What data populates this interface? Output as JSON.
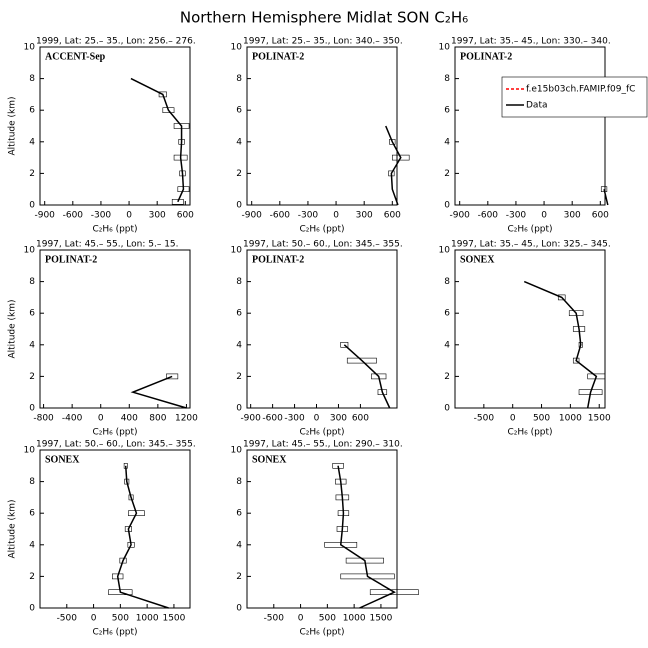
{
  "title": "Northern Hemisphere Midlat SON C₂H₆",
  "chart_data": [
    {
      "type": "line",
      "title": "1999, Lat: 25.– 35., Lon: 256.– 276.",
      "annotation": "ACCENT-Sep",
      "xlabel": "C₂H₆ (ppt)",
      "ylabel": "Altitude (km)",
      "xlim": [
        -950,
        650
      ],
      "xticks": [
        -900,
        -600,
        -300,
        0,
        300,
        600
      ],
      "ylim": [
        0,
        10
      ],
      "yticks": [
        0,
        2,
        4,
        6,
        8,
        10
      ],
      "series": [
        {
          "name": "Data",
          "color": "#000000",
          "x": [
            20,
            360,
            420,
            560,
            560,
            550,
            570,
            580,
            520
          ],
          "y": [
            8,
            7,
            6,
            5,
            4,
            3,
            2,
            1,
            0.2
          ],
          "errors": [
            0,
            40,
            60,
            80,
            30,
            70,
            30,
            60,
            60
          ]
        }
      ]
    },
    {
      "type": "line",
      "title": "1997, Lat: 25.– 35., Lon: 340.– 350.",
      "annotation": "POLINAT-2",
      "xlabel": "C₂H₆ (ppt)",
      "xlim": [
        -950,
        650
      ],
      "xticks": [
        -900,
        -600,
        -300,
        0,
        300,
        600
      ],
      "ylim": [
        0,
        10
      ],
      "yticks": [
        0,
        2,
        4,
        6,
        8,
        10
      ],
      "series": [
        {
          "name": "Data",
          "color": "#000000",
          "x": [
            530,
            600,
            690,
            590,
            600,
            660
          ],
          "y": [
            5,
            4,
            3,
            2,
            1,
            0
          ],
          "errors": [
            0,
            30,
            90,
            30,
            0,
            0
          ]
        }
      ]
    },
    {
      "type": "line",
      "title": "1997, Lat: 35.– 45., Lon: 330.– 340.",
      "annotation": "POLINAT-2",
      "xlabel": "C₂H₆ (ppt)",
      "xlim": [
        -950,
        650
      ],
      "xticks": [
        -900,
        -600,
        -300,
        0,
        300,
        600
      ],
      "ylim": [
        0,
        10
      ],
      "yticks": [
        0,
        2,
        4,
        6,
        8,
        10
      ],
      "legend": [
        {
          "name": "f.e15b03ch.FAMIP.f09_fC",
          "color": "#ff0000",
          "dash": true
        },
        {
          "name": "Data",
          "color": "#000000"
        }
      ],
      "series": [
        {
          "name": "Data",
          "color": "#000000",
          "x": [
            640,
            680
          ],
          "y": [
            1,
            0
          ],
          "errors": [
            30,
            0
          ]
        }
      ]
    },
    {
      "type": "line",
      "title": "1997, Lat: 45.– 55., Lon: 5.– 15.",
      "annotation": "POLINAT-2",
      "xlabel": "C₂H₆ (ppt)",
      "ylabel": "Altitude (km)",
      "xlim": [
        -850,
        1250
      ],
      "xticks": [
        -800,
        -400,
        0,
        400,
        800,
        1200
      ],
      "ylim": [
        0,
        10
      ],
      "yticks": [
        0,
        2,
        4,
        6,
        8,
        10
      ],
      "series": [
        {
          "name": "Data",
          "color": "#000000",
          "x": [
            1000,
            450,
            1200
          ],
          "y": [
            2,
            1,
            0
          ],
          "errors": [
            80,
            0,
            0
          ]
        }
      ]
    },
    {
      "type": "line",
      "title": "1997, Lat: 50.– 60., Lon: 345.– 355.",
      "annotation": "POLINAT-2",
      "xlabel": "C₂H₆ (ppt)",
      "xlim": [
        -950,
        1100
      ],
      "xticks": [
        -900,
        -600,
        -300,
        0,
        300,
        600
      ],
      "ylim": [
        0,
        10
      ],
      "yticks": [
        0,
        2,
        4,
        6,
        8,
        10
      ],
      "series": [
        {
          "name": "Data",
          "color": "#000000",
          "x": [
            380,
            620,
            850,
            900,
            1000
          ],
          "y": [
            4,
            3,
            2,
            1,
            0
          ],
          "errors": [
            50,
            200,
            100,
            60,
            0
          ]
        }
      ]
    },
    {
      "type": "line",
      "title": "1997, Lat: 35.– 45., Lon: 325.– 345.",
      "annotation": "SONEX",
      "xlabel": "C₂H₆ (ppt)",
      "xlim": [
        -1000,
        1600
      ],
      "xticks": [
        -500,
        0,
        500,
        1000,
        1500
      ],
      "ylim": [
        0,
        10
      ],
      "yticks": [
        0,
        2,
        4,
        6,
        8,
        10
      ],
      "series": [
        {
          "name": "Data",
          "color": "#000000",
          "x": [
            200,
            850,
            1100,
            1150,
            1180,
            1100,
            1450,
            1350,
            1300
          ],
          "y": [
            8,
            7,
            6,
            5,
            4,
            3,
            2,
            1,
            0
          ],
          "errors": [
            0,
            60,
            120,
            100,
            30,
            50,
            150,
            200,
            0
          ]
        }
      ]
    },
    {
      "type": "line",
      "title": "1997, Lat: 50.– 60., Lon: 345.– 355.",
      "annotation": "SONEX",
      "xlabel": "C₂H₆ (ppt)",
      "ylabel": "Altitude (km)",
      "xlim": [
        -1000,
        1800
      ],
      "xticks": [
        -500,
        0,
        500,
        1000,
        1500
      ],
      "ylim": [
        0,
        10
      ],
      "yticks": [
        0,
        2,
        4,
        6,
        8,
        10
      ],
      "series": [
        {
          "name": "Data",
          "color": "#000000",
          "x": [
            600,
            620,
            700,
            800,
            650,
            700,
            550,
            450,
            500,
            1400
          ],
          "y": [
            9,
            8,
            7,
            6,
            5,
            4,
            3,
            2,
            1,
            0
          ],
          "errors": [
            30,
            40,
            40,
            150,
            60,
            60,
            60,
            100,
            220,
            0
          ]
        }
      ]
    },
    {
      "type": "line",
      "title": "1997, Lat: 45.– 55., Lon: 290.– 310.",
      "annotation": "SONEX",
      "xlabel": "C₂H₆ (ppt)",
      "xlim": [
        -1000,
        1800
      ],
      "xticks": [
        -500,
        0,
        500,
        1000,
        1500
      ],
      "ylim": [
        0,
        10
      ],
      "yticks": [
        0,
        2,
        4,
        6,
        8,
        10
      ],
      "series": [
        {
          "name": "Data",
          "color": "#000000",
          "x": [
            700,
            750,
            780,
            800,
            780,
            750,
            1200,
            1250,
            1750,
            1100
          ],
          "y": [
            9,
            8,
            7,
            6,
            5,
            4,
            3,
            2,
            1,
            0
          ],
          "errors": [
            100,
            100,
            120,
            100,
            100,
            300,
            350,
            500,
            450,
            0
          ]
        }
      ]
    }
  ]
}
